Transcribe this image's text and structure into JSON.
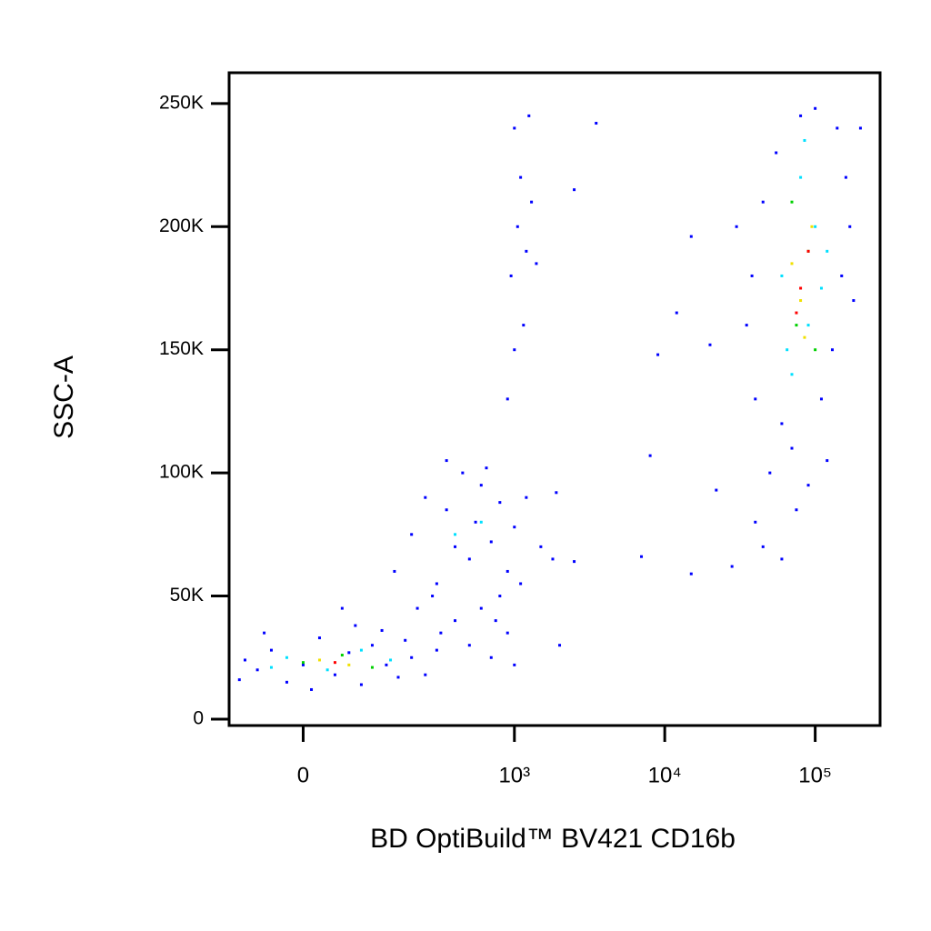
{
  "chart_data": {
    "type": "scatter",
    "xlabel": "BD OptiBuild™ BV421 CD16b",
    "ylabel": "SSC-A",
    "xscale": "asinh",
    "xlim": [
      -110,
      270000
    ],
    "ylim": [
      -2600,
      262500
    ],
    "xticks": [
      0,
      {
        "value": 1000,
        "label": "10³"
      },
      {
        "value": 10000,
        "label": "10⁴"
      },
      {
        "value": 100000,
        "label": "10⁵"
      }
    ],
    "yticks": [
      0,
      {
        "value": 50000,
        "label": "50K"
      },
      {
        "value": 100000,
        "label": "100K"
      },
      {
        "value": 150000,
        "label": "150K"
      },
      {
        "value": 200000,
        "label": "200K"
      },
      {
        "value": 250000,
        "label": "250K"
      }
    ],
    "series": [
      {
        "color": "#0000ff",
        "x": [
          -60,
          -40,
          -20,
          0,
          20,
          40,
          60,
          80,
          100,
          130,
          160,
          200,
          -80,
          -50,
          10,
          70,
          120,
          180,
          250,
          300,
          -90,
          50,
          150,
          200,
          250,
          300,
          350,
          400,
          450,
          500,
          550,
          600,
          700,
          800,
          900,
          1000,
          1200,
          1500,
          1800,
          400,
          500,
          600,
          700,
          800,
          900,
          1000,
          350,
          280,
          320,
          220,
          650,
          750,
          1100,
          2000,
          1900,
          2500,
          1000,
          1100,
          1050,
          1200,
          950,
          1150,
          1000,
          1300,
          900,
          1250,
          1400,
          3500,
          2500,
          8000,
          7000,
          15000,
          12000,
          9000,
          20000,
          28000,
          22000,
          15000,
          40000,
          45000,
          50000,
          60000,
          70000,
          90000,
          120000,
          40000,
          35000,
          30000,
          130000,
          150000,
          160000,
          140000,
          100000,
          80000,
          55000,
          45000,
          38000,
          180000,
          170000,
          200000,
          60000,
          110000,
          75000
        ],
        "y": [
          20000,
          28000,
          15000,
          22000,
          33000,
          18000,
          27000,
          14000,
          30000,
          22000,
          17000,
          25000,
          24000,
          35000,
          12000,
          38000,
          36000,
          32000,
          18000,
          28000,
          16000,
          45000,
          60000,
          75000,
          90000,
          55000,
          85000,
          70000,
          100000,
          65000,
          80000,
          95000,
          72000,
          88000,
          60000,
          78000,
          90000,
          70000,
          65000,
          40000,
          30000,
          45000,
          25000,
          50000,
          35000,
          22000,
          105000,
          50000,
          35000,
          45000,
          102000,
          40000,
          55000,
          30000,
          92000,
          64000,
          240000,
          220000,
          200000,
          190000,
          180000,
          160000,
          150000,
          210000,
          130000,
          245000,
          185000,
          242000,
          215000,
          107000,
          66000,
          59000,
          165000,
          148000,
          152000,
          62000,
          93000,
          196000,
          80000,
          70000,
          100000,
          65000,
          110000,
          95000,
          105000,
          130000,
          160000,
          200000,
          150000,
          180000,
          220000,
          240000,
          248000,
          245000,
          230000,
          210000,
          180000,
          170000,
          200000,
          240000,
          120000,
          130000,
          85000
        ]
      },
      {
        "color": "#00e0ff",
        "x": [
          -20,
          30,
          80,
          -40,
          140,
          600,
          400,
          70000,
          90000,
          60000,
          100000,
          80000,
          110000,
          65000,
          85000,
          120000
        ],
        "y": [
          25000,
          20000,
          28000,
          21000,
          24000,
          80000,
          75000,
          140000,
          160000,
          180000,
          200000,
          220000,
          175000,
          150000,
          235000,
          190000
        ]
      },
      {
        "color": "#00d000",
        "x": [
          0,
          50,
          100,
          75000,
          90000,
          70000,
          100000
        ],
        "y": [
          23000,
          26000,
          21000,
          160000,
          190000,
          210000,
          150000
        ]
      },
      {
        "color": "#f0e000",
        "x": [
          20,
          60,
          80000,
          95000,
          70000,
          85000
        ],
        "y": [
          24000,
          22000,
          170000,
          200000,
          185000,
          155000
        ]
      },
      {
        "color": "#ff0000",
        "x": [
          40,
          80000,
          75000,
          90000
        ],
        "y": [
          23000,
          175000,
          165000,
          190000
        ]
      }
    ]
  }
}
